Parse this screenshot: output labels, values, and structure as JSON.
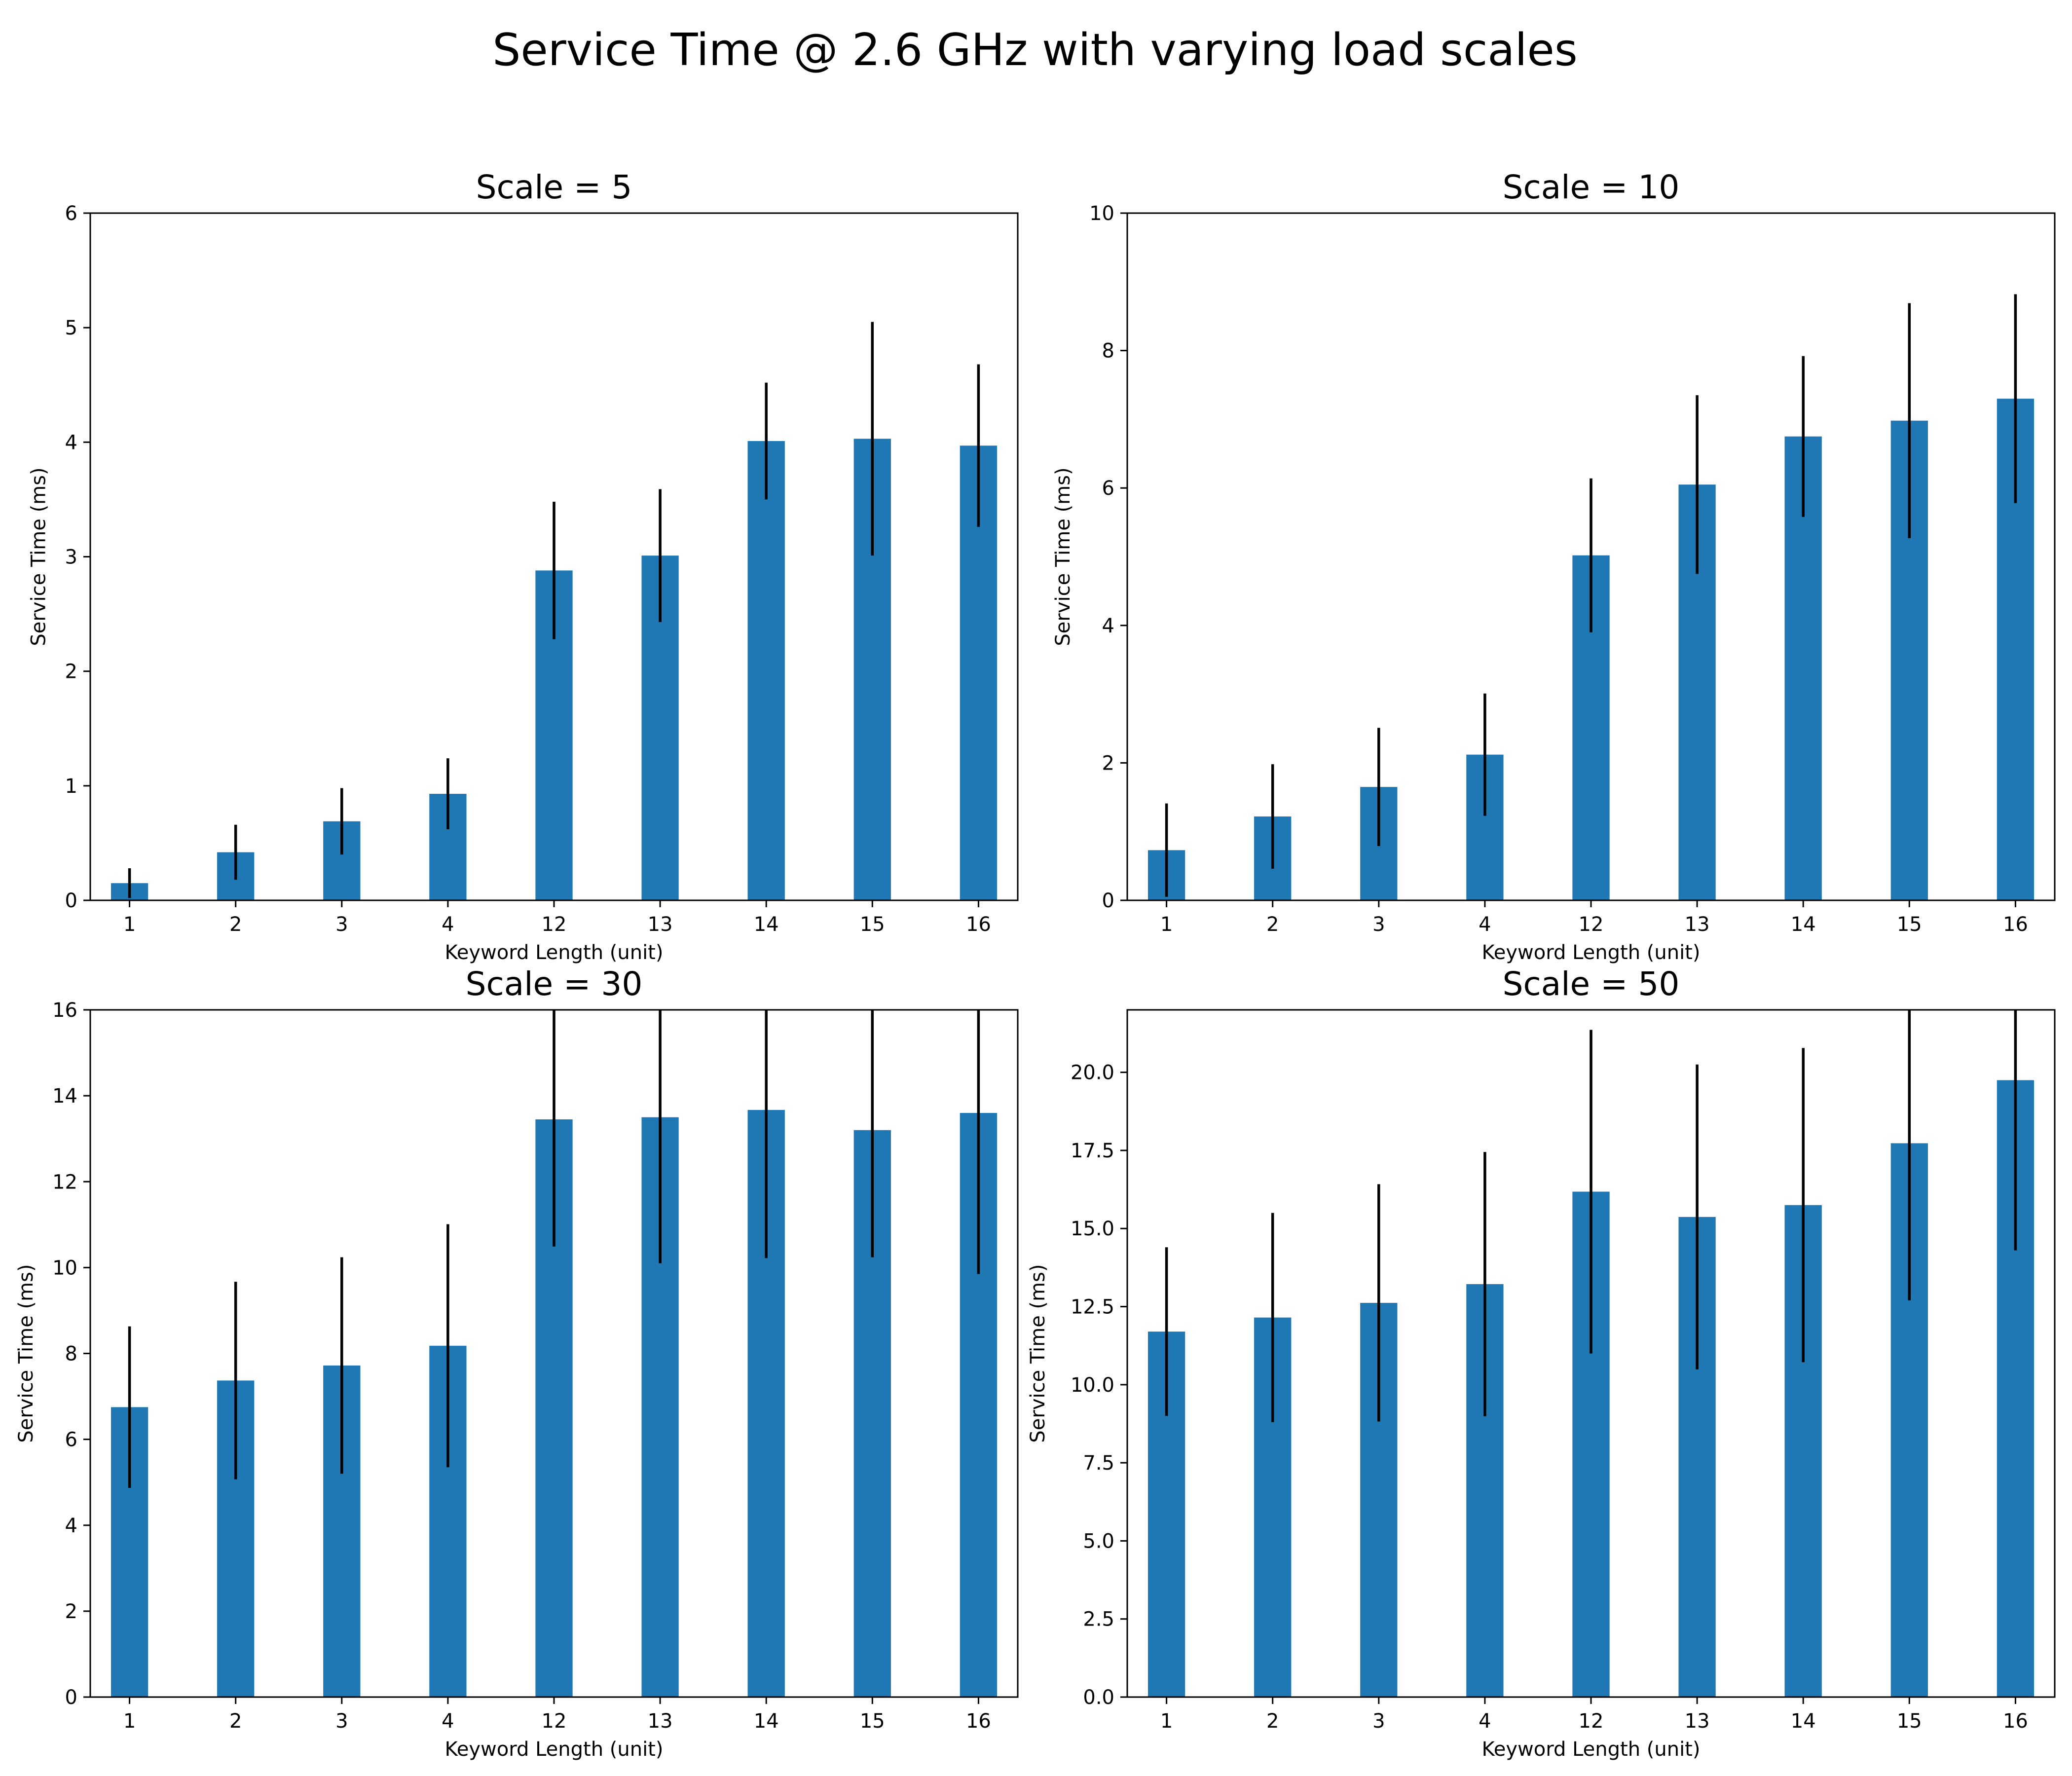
{
  "figure": {
    "title": "Service Time @ 2.6 GHz with varying load scales",
    "colors": {
      "bar": "#1f77b4",
      "errorbar": "#000000",
      "axes": "#000000",
      "background": "#ffffff"
    }
  },
  "chart_data": [
    {
      "type": "bar",
      "title": "Scale = 5",
      "xlabel": "Keyword Length (unit)",
      "ylabel": "Service Time (ms)",
      "categories": [
        "1",
        "2",
        "3",
        "4",
        "12",
        "13",
        "14",
        "15",
        "16"
      ],
      "values": [
        0.15,
        0.42,
        0.69,
        0.93,
        2.88,
        3.01,
        4.01,
        4.03,
        3.97
      ],
      "error": [
        0.13,
        0.24,
        0.29,
        0.31,
        0.6,
        0.58,
        0.51,
        1.02,
        0.71
      ],
      "ylim": [
        0,
        6
      ],
      "yticks": [
        "0",
        "1",
        "2",
        "3",
        "4",
        "5",
        "6"
      ],
      "grid": false,
      "legend": "none"
    },
    {
      "type": "bar",
      "title": "Scale = 10",
      "xlabel": "Keyword Length (unit)",
      "ylabel": "Service Time (ms)",
      "categories": [
        "1",
        "2",
        "3",
        "4",
        "12",
        "13",
        "14",
        "15",
        "16"
      ],
      "values": [
        0.73,
        1.22,
        1.65,
        2.12,
        5.02,
        6.05,
        6.75,
        6.98,
        7.3
      ],
      "error": [
        0.68,
        0.76,
        0.86,
        0.89,
        1.12,
        1.3,
        1.17,
        1.71,
        1.52
      ],
      "ylim": [
        0,
        10
      ],
      "yticks": [
        "0",
        "2",
        "4",
        "6",
        "8",
        "10"
      ],
      "grid": false,
      "legend": "none"
    },
    {
      "type": "bar",
      "title": "Scale = 30",
      "xlabel": "Keyword Length (unit)",
      "ylabel": "Service Time (ms)",
      "categories": [
        "1",
        "2",
        "3",
        "4",
        "12",
        "13",
        "14",
        "15",
        "16"
      ],
      "values": [
        6.75,
        7.37,
        7.72,
        8.18,
        13.45,
        13.5,
        13.67,
        13.2,
        13.6
      ],
      "error": [
        1.88,
        2.3,
        2.52,
        2.83,
        2.96,
        3.4,
        3.45,
        2.96,
        3.75
      ],
      "ylim": [
        0,
        16
      ],
      "yticks": [
        "0",
        "2",
        "4",
        "6",
        "8",
        "10",
        "12",
        "14",
        "16"
      ],
      "grid": false,
      "legend": "none"
    },
    {
      "type": "bar",
      "title": "Scale = 50",
      "xlabel": "Keyword Length (unit)",
      "ylabel": "Service Time (ms)",
      "categories": [
        "1",
        "2",
        "3",
        "4",
        "12",
        "13",
        "14",
        "15",
        "16"
      ],
      "values": [
        11.7,
        12.15,
        12.62,
        13.22,
        16.18,
        15.37,
        15.75,
        17.73,
        19.75
      ],
      "error": [
        2.7,
        3.35,
        3.8,
        4.23,
        5.18,
        4.88,
        5.03,
        5.03,
        5.45
      ],
      "ylim": [
        0,
        22
      ],
      "yticks": [
        "0.0",
        "2.5",
        "5.0",
        "7.5",
        "10.0",
        "12.5",
        "15.0",
        "17.5",
        "20.0"
      ],
      "grid": false,
      "legend": "none"
    }
  ]
}
